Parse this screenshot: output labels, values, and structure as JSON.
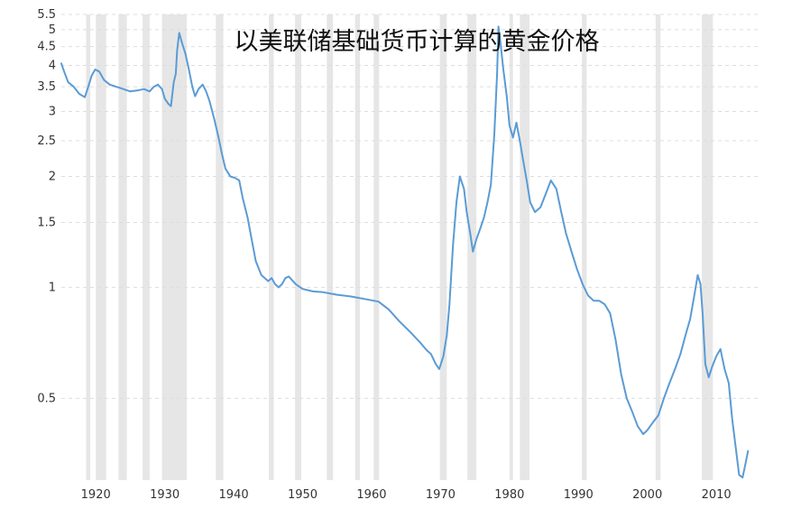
{
  "chart_data": {
    "type": "line",
    "title": "以美联储基础货币计算的黄金价格",
    "xlabel": "",
    "ylabel": "",
    "x_scale": "time",
    "y_scale": "log",
    "xlim": [
      1915,
      2016
    ],
    "ylim": [
      0.3,
      5.5
    ],
    "grid": true,
    "legend": "none",
    "line_color": "#5b9bd5",
    "recession_color": "#e6e6e6",
    "x_ticks": [
      1920,
      1930,
      1940,
      1950,
      1960,
      1970,
      1980,
      1990,
      2000,
      2010
    ],
    "x_tick_labels": [
      "1920",
      "1930",
      "1940",
      "1950",
      "1960",
      "1970",
      "1980",
      "1990",
      "2000",
      "2010"
    ],
    "y_ticks": [
      0.5,
      1,
      1.5,
      2,
      2.5,
      3,
      3.5,
      4,
      4.5,
      5,
      5.5
    ],
    "y_tick_labels": [
      "0.5",
      "1",
      "1.5",
      "2",
      "2.5",
      "3",
      "3.5",
      "4",
      "4.5",
      "5",
      "5.5"
    ],
    "recessions": [
      [
        1918.6,
        1919.2
      ],
      [
        1920.0,
        1921.5
      ],
      [
        1923.3,
        1924.5
      ],
      [
        1926.8,
        1927.8
      ],
      [
        1929.6,
        1933.2
      ],
      [
        1937.4,
        1938.5
      ],
      [
        1945.1,
        1945.8
      ],
      [
        1948.9,
        1949.8
      ],
      [
        1953.5,
        1954.4
      ],
      [
        1957.6,
        1958.3
      ],
      [
        1960.3,
        1961.1
      ],
      [
        1969.9,
        1970.9
      ],
      [
        1973.9,
        1975.2
      ],
      [
        1980.0,
        1980.5
      ],
      [
        1981.5,
        1982.9
      ],
      [
        1990.5,
        1991.2
      ],
      [
        2001.2,
        2001.9
      ],
      [
        2007.9,
        2009.5
      ]
    ],
    "series": [
      {
        "points": [
          [
            1915.0,
            4.05
          ],
          [
            1915.4,
            3.85
          ],
          [
            1916.0,
            3.6
          ],
          [
            1916.8,
            3.5
          ],
          [
            1917.6,
            3.35
          ],
          [
            1918.4,
            3.28
          ],
          [
            1918.8,
            3.45
          ],
          [
            1919.4,
            3.75
          ],
          [
            1919.9,
            3.9
          ],
          [
            1920.5,
            3.85
          ],
          [
            1921.2,
            3.65
          ],
          [
            1922.0,
            3.55
          ],
          [
            1923.0,
            3.5
          ],
          [
            1924.0,
            3.45
          ],
          [
            1925.0,
            3.4
          ],
          [
            1926.0,
            3.42
          ],
          [
            1927.0,
            3.45
          ],
          [
            1927.8,
            3.4
          ],
          [
            1928.4,
            3.5
          ],
          [
            1929.0,
            3.55
          ],
          [
            1929.6,
            3.45
          ],
          [
            1930.0,
            3.25
          ],
          [
            1930.5,
            3.15
          ],
          [
            1930.9,
            3.1
          ],
          [
            1931.3,
            3.6
          ],
          [
            1931.6,
            3.8
          ],
          [
            1931.8,
            4.4
          ],
          [
            1932.1,
            4.9
          ],
          [
            1932.5,
            4.6
          ],
          [
            1933.0,
            4.3
          ],
          [
            1933.5,
            3.9
          ],
          [
            1934.0,
            3.5
          ],
          [
            1934.4,
            3.3
          ],
          [
            1934.9,
            3.45
          ],
          [
            1935.5,
            3.55
          ],
          [
            1936.0,
            3.4
          ],
          [
            1936.5,
            3.2
          ],
          [
            1937.2,
            2.85
          ],
          [
            1937.8,
            2.55
          ],
          [
            1938.3,
            2.3
          ],
          [
            1938.8,
            2.1
          ],
          [
            1939.5,
            2.0
          ],
          [
            1940.2,
            1.98
          ],
          [
            1940.8,
            1.95
          ],
          [
            1941.3,
            1.75
          ],
          [
            1942.0,
            1.55
          ],
          [
            1942.6,
            1.35
          ],
          [
            1943.2,
            1.18
          ],
          [
            1944.0,
            1.08
          ],
          [
            1945.0,
            1.04
          ],
          [
            1945.5,
            1.06
          ],
          [
            1946.0,
            1.02
          ],
          [
            1946.5,
            1.0
          ],
          [
            1947.0,
            1.02
          ],
          [
            1947.5,
            1.06
          ],
          [
            1948.0,
            1.07
          ],
          [
            1949.0,
            1.02
          ],
          [
            1950.0,
            0.99
          ],
          [
            1951.5,
            0.975
          ],
          [
            1953.0,
            0.97
          ],
          [
            1955.0,
            0.955
          ],
          [
            1957.0,
            0.945
          ],
          [
            1959.0,
            0.93
          ],
          [
            1961.0,
            0.915
          ],
          [
            1962.5,
            0.87
          ],
          [
            1964.0,
            0.81
          ],
          [
            1965.5,
            0.76
          ],
          [
            1967.0,
            0.71
          ],
          [
            1968.0,
            0.675
          ],
          [
            1968.6,
            0.66
          ],
          [
            1969.3,
            0.62
          ],
          [
            1969.8,
            0.6
          ],
          [
            1970.4,
            0.65
          ],
          [
            1970.9,
            0.74
          ],
          [
            1971.3,
            0.9
          ],
          [
            1971.8,
            1.3
          ],
          [
            1972.3,
            1.7
          ],
          [
            1972.8,
            2.0
          ],
          [
            1973.4,
            1.85
          ],
          [
            1973.8,
            1.6
          ],
          [
            1974.3,
            1.4
          ],
          [
            1974.7,
            1.25
          ],
          [
            1975.2,
            1.35
          ],
          [
            1975.8,
            1.45
          ],
          [
            1976.3,
            1.55
          ],
          [
            1976.8,
            1.7
          ],
          [
            1977.3,
            1.9
          ],
          [
            1977.8,
            2.6
          ],
          [
            1978.2,
            3.8
          ],
          [
            1978.4,
            5.1
          ],
          [
            1978.7,
            4.6
          ],
          [
            1979.1,
            3.9
          ],
          [
            1979.6,
            3.3
          ],
          [
            1980.0,
            2.75
          ],
          [
            1980.5,
            2.55
          ],
          [
            1981.0,
            2.8
          ],
          [
            1981.5,
            2.5
          ],
          [
            1982.0,
            2.2
          ],
          [
            1982.5,
            1.95
          ],
          [
            1983.0,
            1.7
          ],
          [
            1983.7,
            1.6
          ],
          [
            1984.5,
            1.65
          ],
          [
            1985.3,
            1.8
          ],
          [
            1986.0,
            1.95
          ],
          [
            1986.8,
            1.85
          ],
          [
            1987.5,
            1.6
          ],
          [
            1988.2,
            1.4
          ],
          [
            1989.0,
            1.25
          ],
          [
            1989.8,
            1.12
          ],
          [
            1990.6,
            1.02
          ],
          [
            1991.4,
            0.95
          ],
          [
            1992.2,
            0.92
          ],
          [
            1993.0,
            0.92
          ],
          [
            1993.8,
            0.9
          ],
          [
            1994.6,
            0.85
          ],
          [
            1995.4,
            0.72
          ],
          [
            1996.2,
            0.58
          ],
          [
            1997.0,
            0.5
          ],
          [
            1997.8,
            0.46
          ],
          [
            1998.6,
            0.42
          ],
          [
            1999.4,
            0.4
          ],
          [
            2000.0,
            0.41
          ],
          [
            2000.8,
            0.43
          ],
          [
            2001.6,
            0.45
          ],
          [
            2002.4,
            0.5
          ],
          [
            2003.2,
            0.55
          ],
          [
            2004.0,
            0.6
          ],
          [
            2004.8,
            0.66
          ],
          [
            2005.6,
            0.75
          ],
          [
            2006.2,
            0.82
          ],
          [
            2006.8,
            0.95
          ],
          [
            2007.3,
            1.08
          ],
          [
            2007.7,
            1.02
          ],
          [
            2008.0,
            0.85
          ],
          [
            2008.4,
            0.62
          ],
          [
            2008.9,
            0.57
          ],
          [
            2009.4,
            0.61
          ],
          [
            2010.0,
            0.65
          ],
          [
            2010.6,
            0.68
          ],
          [
            2011.2,
            0.6
          ],
          [
            2011.8,
            0.55
          ],
          [
            2012.3,
            0.44
          ],
          [
            2012.8,
            0.37
          ],
          [
            2013.3,
            0.31
          ],
          [
            2013.8,
            0.305
          ],
          [
            2014.2,
            0.33
          ],
          [
            2014.6,
            0.36
          ]
        ]
      }
    ]
  }
}
